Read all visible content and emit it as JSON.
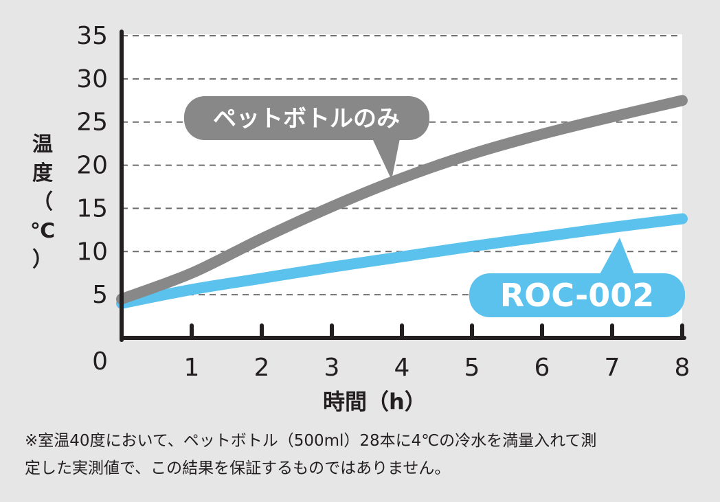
{
  "chart_data": {
    "type": "line",
    "xlabel": "時間（h）",
    "ylabel_chars": [
      "温",
      "度",
      "（",
      "℃",
      "）"
    ],
    "x_ticks": [
      1,
      2,
      3,
      4,
      5,
      6,
      7,
      8
    ],
    "y_ticks": [
      0,
      5,
      10,
      15,
      20,
      25,
      30,
      35
    ],
    "xlim": [
      0,
      8
    ],
    "ylim": [
      0,
      35
    ],
    "grid": "horizontal dashed",
    "series": [
      {
        "name": "ペットボトルのみ",
        "color": "#888888",
        "x": [
          0,
          1,
          2,
          3,
          4,
          5,
          6,
          7,
          8
        ],
        "y": [
          4.5,
          7.5,
          11.5,
          15.2,
          18.5,
          21.3,
          23.6,
          25.6,
          27.5
        ]
      },
      {
        "name": "ROC-002",
        "color": "#5bc2ee",
        "x": [
          0,
          1,
          2,
          3,
          4,
          5,
          6,
          7,
          8
        ],
        "y": [
          4.0,
          5.6,
          6.9,
          8.2,
          9.4,
          10.6,
          11.7,
          12.8,
          13.8
        ]
      }
    ]
  },
  "footnote": {
    "line1": "※室温40度において、ペットボトル（500ml）28本に4℃の冷水を満量入れて測",
    "line2": "定した実測値で、この結果を保証するものではありません。"
  }
}
